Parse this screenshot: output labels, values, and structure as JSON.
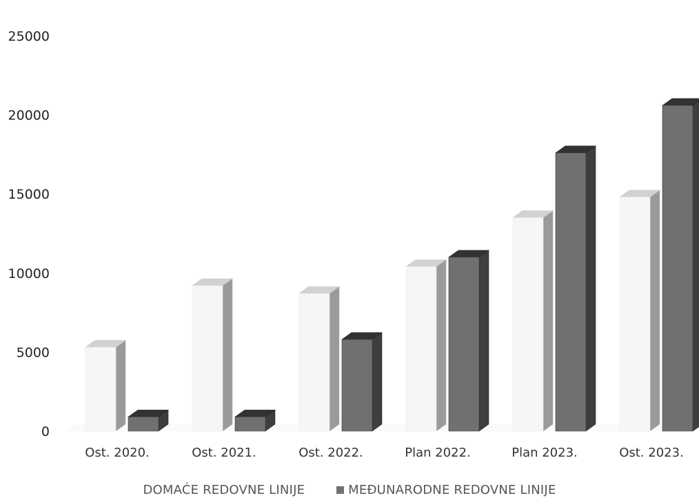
{
  "chart_data": {
    "type": "bar",
    "categories": [
      "Ost. 2020.",
      "Ost. 2021.",
      "Ost. 2022.",
      "Plan 2022.",
      "Plan 2023.",
      "Ost. 2023."
    ],
    "series": [
      {
        "name": "DOMAĆE REDOVNE LINIJE",
        "color": "#f4f4f4",
        "values": [
          5300,
          9200,
          8700,
          10400,
          13500,
          14800
        ]
      },
      {
        "name": "MEĐUNARODNE REDOVNE LINIJE",
        "color": "#707070",
        "values": [
          900,
          900,
          5800,
          11000,
          17600,
          20600
        ]
      }
    ],
    "yticks": [
      "25000",
      "20000",
      "15000",
      "10000",
      "5000",
      "0"
    ],
    "ylim": [
      0,
      25000
    ],
    "grid": false,
    "legend_position": "bottom",
    "style": "3d-clustered-bar"
  }
}
